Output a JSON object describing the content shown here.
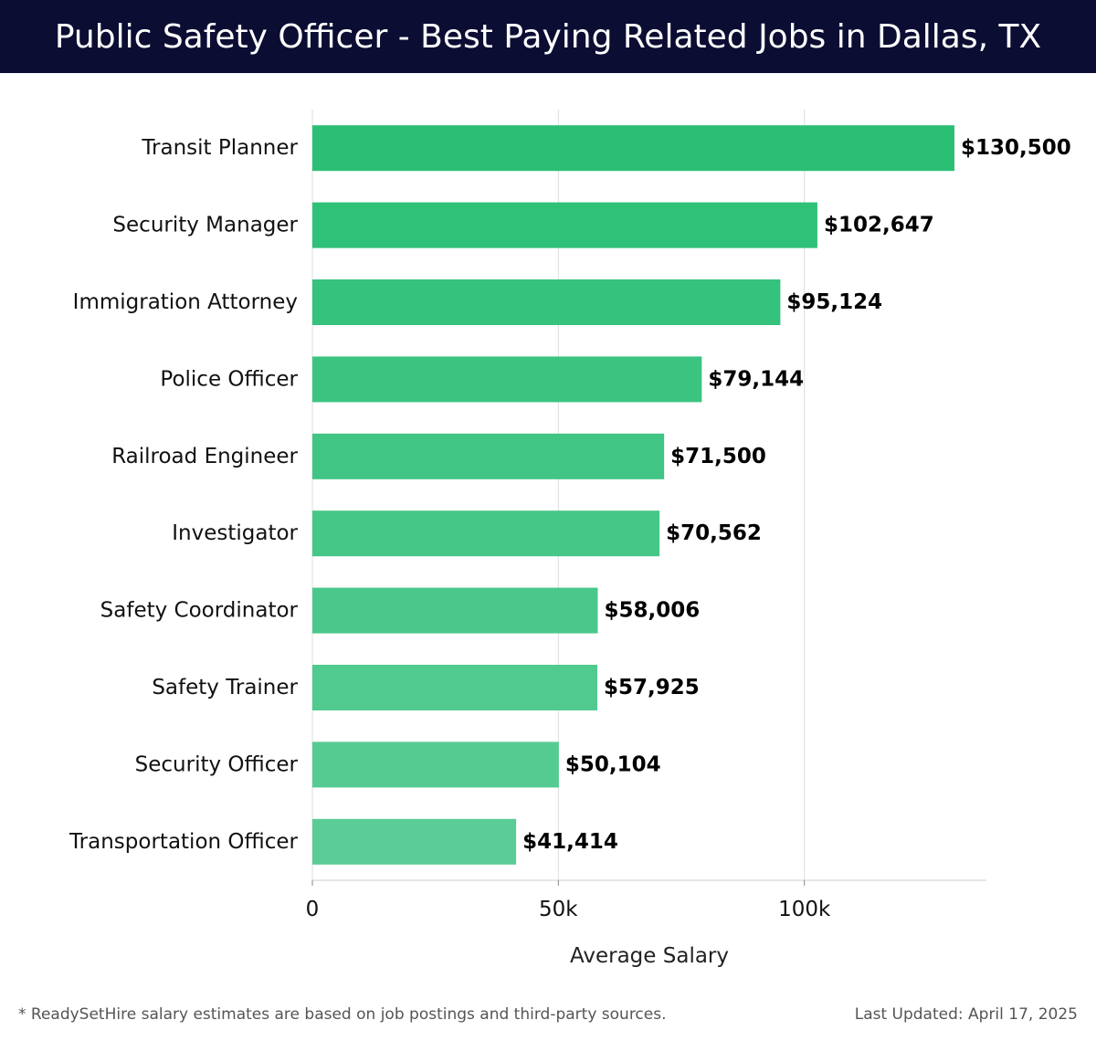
{
  "header": {
    "title": "Public Safety Officer - Best Paying Related Jobs in Dallas, TX"
  },
  "chart_data": {
    "type": "bar",
    "orientation": "horizontal",
    "categories": [
      "Transit Planner",
      "Security Manager",
      "Immigration Attorney",
      "Police Officer",
      "Railroad Engineer",
      "Investigator",
      "Safety Coordinator",
      "Safety Trainer",
      "Security Officer",
      "Transportation Officer"
    ],
    "values": [
      130500,
      102647,
      95124,
      79144,
      71500,
      70562,
      58006,
      57925,
      50104,
      41414
    ],
    "value_labels": [
      "$130,500",
      "$102,647",
      "$95,124",
      "$79,144",
      "$71,500",
      "$70,562",
      "$58,006",
      "$57,925",
      "$50,104",
      "$41,414"
    ],
    "xlabel": "Average Salary",
    "xlim": [
      0,
      137000
    ],
    "xticks": [
      0,
      50000,
      100000
    ],
    "xtick_labels": [
      "0",
      "50k",
      "100k"
    ],
    "grid": "vertical",
    "bar_color_top": "#2bbf75",
    "bar_color_bottom": "#5acd96"
  },
  "footer": {
    "note": "* ReadySetHire salary estimates are based on job postings and third-party sources.",
    "updated": "Last Updated: April 17, 2025"
  }
}
